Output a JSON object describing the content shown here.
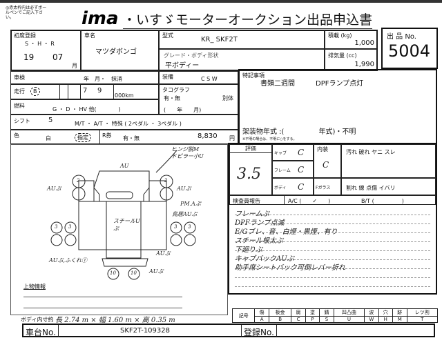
{
  "header": {
    "note": "◎赤太枠内は必ずボールペンでご記入下さい。",
    "logo": "ima",
    "title": "・いすゞモーターオークション出品申込書"
  },
  "lot": {
    "label": "出 品 No.",
    "number": "5004"
  },
  "first_reg": {
    "label": "初度登録",
    "eras": "S ・ H ・ R",
    "year": "19",
    "month": "07",
    "month_unit": "月"
  },
  "car_name": {
    "label": "車名",
    "value": "マツダボンゴ"
  },
  "model": {
    "label": "型式",
    "value": "KR_ SKF2T"
  },
  "grade": {
    "label": "グレード・ボディ形状",
    "value": "平ボディー"
  },
  "load": {
    "label": "積載 (kg)",
    "value": "1,000"
  },
  "displacement": {
    "label": "排気量 (cc)",
    "value": "1,990"
  },
  "inspection": {
    "label": "車検",
    "value": "年　月・　抹消"
  },
  "equipment": {
    "label": "装備",
    "items": "C  S  W"
  },
  "mileage": {
    "label": "走行",
    "mark": "B",
    "d1": "7",
    "d2": "9",
    "unit": "000km"
  },
  "tachograph": {
    "label": "タコグラフ",
    "value": "有・無",
    "separate": "別体",
    "date": "(　　年　　月)"
  },
  "fuel": {
    "label": "燃料",
    "value": "G ・ D ・ HV 他(　　　　)"
  },
  "shift": {
    "label": "シフト",
    "gears": "5",
    "value": "M/T ・ A/T ・ 特殊 ( 2ペダル ・ 3ペダル )"
  },
  "color": {
    "label": "色",
    "value": "白",
    "designated": "指定",
    "recycle_label": "R券",
    "recycle": "有・無",
    "recycle_fee": "8,830",
    "yen": "円"
  },
  "special": {
    "label": "特記事項",
    "line1": "書類二週間",
    "line2": "DPFランプ点灯",
    "body_year": "架装物年式 :(　　　　　年式)・不明",
    "body_note": "※不明の場合は、不明に○をする。"
  },
  "diagram": {
    "notes": [
      "ヒンジ脱M",
      "ドピラー小U",
      "AU",
      "AUぷ",
      "AUぷ",
      "PM.Aぷ",
      "鳥居AUぷ",
      "スチールUぷ",
      "AUぷ",
      "AUぷ,ふくれ①",
      "AUぷ"
    ],
    "tires": [
      "2",
      "2",
      "3",
      "3",
      "3",
      "3",
      "10",
      "10"
    ],
    "upper_info": "上物情報"
  },
  "evaluation": {
    "label": "評価",
    "score": "3.5",
    "cab_label": "キャブ",
    "cab": "C",
    "frame_label": "フレーム",
    "frame": "C",
    "body_label": "ボディ",
    "body": "C",
    "interior_label": "内装",
    "interior": "C",
    "interior_marks": "汚れ 破れ ヤニ スレ",
    "glass_label": "Fガラス",
    "glass_marks": "割れ 線 点傷 イバリ"
  },
  "report": {
    "label": "検査員報告",
    "ac": "A/C (　　✓　　)",
    "bt": "B/T (　　　　　)",
    "lines": [
      "フレームぷ",
      "DPFランプ点滅",
      "E/Gブレ、音、白煙・黒煙、有り",
      "スチール根太ぷ",
      "下廻りぷ",
      "キャブバックAUぷ",
      "助手席シートバック可倒レバー折れ"
    ]
  },
  "dimensions": {
    "label": "ボディ内寸約",
    "value": "長 2.74 m × 幅 1.60 m × 高 0.35 m"
  },
  "codes": {
    "label": "記号",
    "names": [
      "傷",
      "板金",
      "腐",
      "塗",
      "錆",
      "凹凸曲",
      "波",
      "穴",
      "跡",
      "レツ割"
    ],
    "letters": [
      "A",
      "B",
      "C",
      "P",
      "S",
      "U",
      "W",
      "H",
      "M",
      "T"
    ]
  },
  "chassis": {
    "label": "車台No.",
    "value": "SKF2T-109328"
  },
  "registration": {
    "label": "登録No.",
    "value": ""
  }
}
